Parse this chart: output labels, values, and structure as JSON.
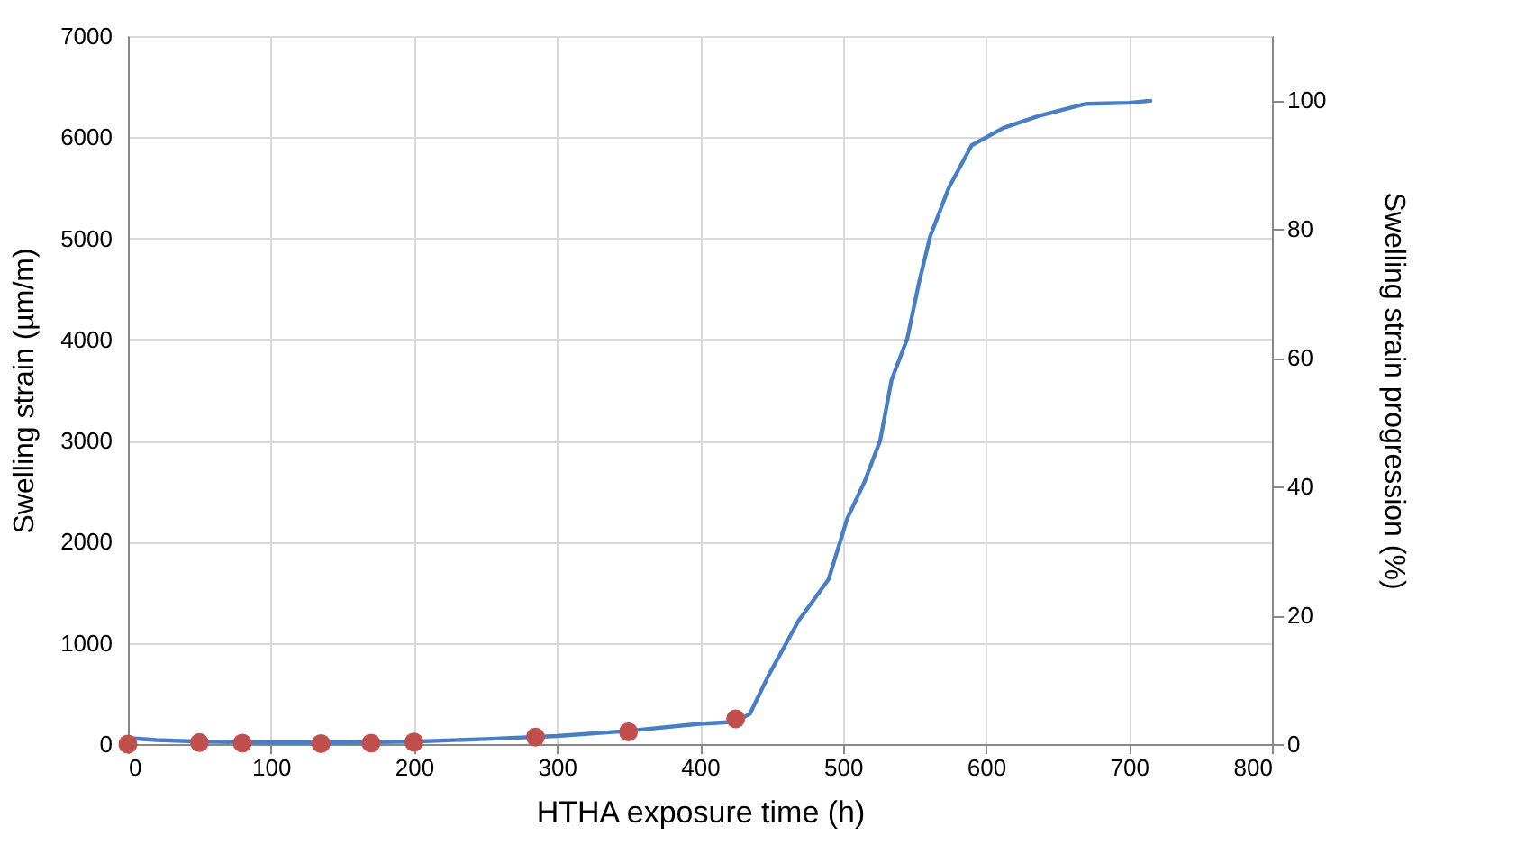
{
  "chart_data": {
    "type": "line",
    "xlabel": "HTHA exposure time (h)",
    "ylabel": "Swelling strain (µm/m)",
    "y2label": "Swelling strain progression (%)",
    "xlim": [
      0,
      800
    ],
    "xticks": [
      0,
      100,
      200,
      300,
      400,
      500,
      600,
      700,
      800
    ],
    "ylim": [
      0,
      7000
    ],
    "yticks": [
      0,
      1000,
      2000,
      3000,
      4000,
      5000,
      6000,
      7000
    ],
    "y2lim": [
      0,
      110
    ],
    "y2ticks": [
      0,
      20,
      40,
      60,
      80,
      100
    ],
    "grid": true,
    "series": [
      {
        "color": "#4a7ec4",
        "x": [
          0,
          20,
          50,
          100,
          150,
          200,
          250,
          300,
          350,
          400,
          425,
          435,
          448,
          469,
          490,
          503,
          515,
          526,
          534,
          545,
          553,
          561,
          574,
          590,
          612,
          637,
          670,
          700,
          715
        ],
        "values": [
          60,
          40,
          25,
          15,
          15,
          25,
          50,
          80,
          130,
          200,
          220,
          300,
          680,
          1220,
          1630,
          2230,
          2590,
          3000,
          3600,
          4010,
          4550,
          5020,
          5500,
          5920,
          6090,
          6210,
          6330,
          6340,
          6360
        ]
      },
      {
        "type": "scatter",
        "color": "#c0504d",
        "marker": "circle",
        "x": [
          0,
          50,
          80,
          135,
          170,
          200,
          285,
          350,
          425
        ],
        "values": [
          0,
          15,
          10,
          5,
          10,
          20,
          70,
          120,
          250
        ]
      }
    ]
  }
}
